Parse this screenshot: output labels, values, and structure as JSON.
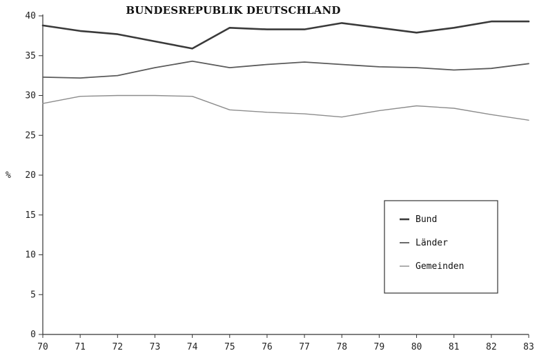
{
  "chart_data": {
    "type": "line",
    "title": "BUNDESREPUBLIK DEUTSCHLAND",
    "xlabel": "",
    "ylabel": "%",
    "x": [
      70,
      71,
      72,
      73,
      74,
      75,
      76,
      77,
      78,
      79,
      80,
      81,
      82,
      83
    ],
    "xlim": [
      70,
      83
    ],
    "ylim": [
      0,
      40
    ],
    "yticks": [
      0,
      5,
      10,
      15,
      20,
      25,
      30,
      35,
      40
    ],
    "grid": false,
    "legend_position": "right",
    "series": [
      {
        "name": "Bund",
        "color": "#3a3a3a",
        "values": [
          38.8,
          38.1,
          37.7,
          36.8,
          35.9,
          38.5,
          38.3,
          38.3,
          39.1,
          38.5,
          37.9,
          38.5,
          39.3,
          39.3
        ]
      },
      {
        "name": "Länder",
        "color": "#5a5a5a",
        "values": [
          32.3,
          32.2,
          32.5,
          33.5,
          34.3,
          33.5,
          33.9,
          34.2,
          33.9,
          33.6,
          33.5,
          33.2,
          33.4,
          34.0
        ]
      },
      {
        "name": "Gemeinden",
        "color": "#8c8c8c",
        "values": [
          29.0,
          29.9,
          30.0,
          30.0,
          29.9,
          28.2,
          27.9,
          27.7,
          27.3,
          28.1,
          28.7,
          28.4,
          27.6,
          26.9
        ]
      }
    ]
  }
}
